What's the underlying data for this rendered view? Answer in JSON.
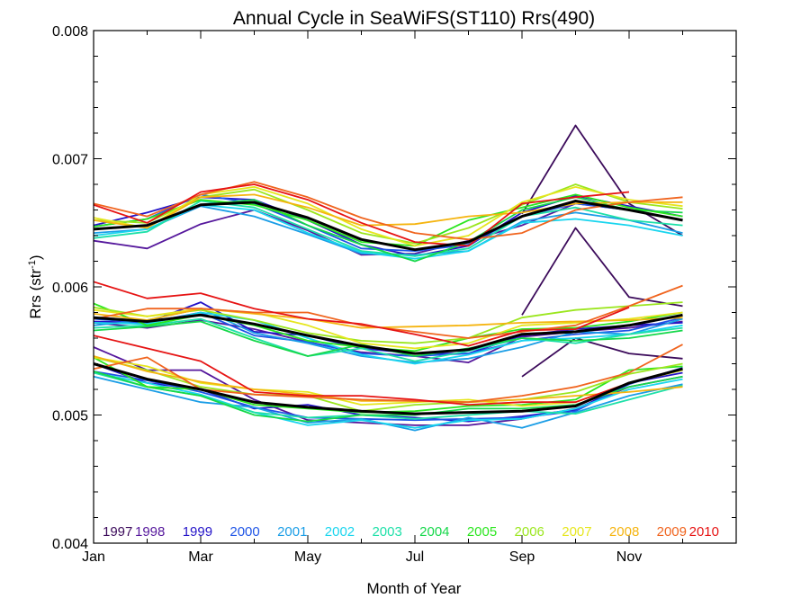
{
  "chart_data": {
    "type": "line",
    "title": "Annual Cycle in SeaWiFS(ST110) Rrs(490)",
    "xlabel": "Month of Year",
    "ylabel_main": "Rrs (str",
    "ylabel_sup": "-1",
    "ylabel_end": ")",
    "xlim": [
      1,
      13
    ],
    "ylim": [
      0.004,
      0.008
    ],
    "x_ticks": [
      {
        "value": 1,
        "label": "Jan"
      },
      {
        "value": 3,
        "label": "Mar"
      },
      {
        "value": 5,
        "label": "May"
      },
      {
        "value": 7,
        "label": "Jul"
      },
      {
        "value": 9,
        "label": "Sep"
      },
      {
        "value": 11,
        "label": "Nov"
      }
    ],
    "y_ticks": [
      {
        "value": 0.004,
        "label": "0.004"
      },
      {
        "value": 0.005,
        "label": "0.005"
      },
      {
        "value": 0.006,
        "label": "0.006"
      },
      {
        "value": 0.007,
        "label": "0.007"
      },
      {
        "value": 0.008,
        "label": "0.008"
      }
    ],
    "legend_position": "bottom",
    "x": [
      1,
      2,
      3,
      4,
      5,
      6,
      7,
      8,
      9,
      10,
      11,
      12
    ],
    "series": [
      {
        "name": "1997",
        "color": "#3b0a5a",
        "upper": [
          null,
          null,
          null,
          null,
          null,
          null,
          null,
          null,
          0.00657,
          0.00726,
          0.00665,
          0.0064
        ],
        "middle": [
          null,
          null,
          null,
          null,
          null,
          null,
          null,
          null,
          0.00578,
          0.00646,
          0.00592,
          0.00585
        ],
        "lower": [
          null,
          null,
          null,
          null,
          null,
          null,
          null,
          null,
          0.0053,
          0.0056,
          0.00548,
          0.00544
        ]
      },
      {
        "name": "1998",
        "color": "#55179c",
        "upper": [
          0.00636,
          0.0063,
          0.00649,
          0.0066,
          0.00644,
          0.00625,
          0.00626,
          0.00636,
          0.00648,
          0.00665,
          0.0066,
          0.00652
        ],
        "middle": [
          0.00572,
          0.00568,
          0.00574,
          0.00567,
          0.00557,
          0.00549,
          0.00546,
          0.00541,
          0.00561,
          0.00565,
          0.00568,
          0.00573
        ],
        "lower": [
          0.00553,
          0.00535,
          0.00535,
          0.00512,
          0.00496,
          0.00494,
          0.00492,
          0.00492,
          0.00497,
          0.00505,
          0.00522,
          0.0053
        ]
      },
      {
        "name": "1999",
        "color": "#2414c8",
        "upper": [
          0.00648,
          0.00658,
          0.0067,
          0.00668,
          0.00652,
          0.00633,
          0.00624,
          0.00632,
          0.00658,
          0.00671,
          0.00663,
          0.00655
        ],
        "middle": [
          0.00573,
          0.00572,
          0.00588,
          0.00565,
          0.00562,
          0.00552,
          0.00548,
          0.00548,
          0.00562,
          0.00567,
          0.0057,
          0.00572
        ],
        "lower": [
          0.0054,
          0.00525,
          0.0052,
          0.00505,
          0.00508,
          0.005,
          0.00498,
          0.00495,
          0.00499,
          0.00504,
          0.00525,
          0.00533
        ]
      },
      {
        "name": "2000",
        "color": "#1f55e6",
        "upper": [
          0.00647,
          0.00653,
          0.00672,
          0.00665,
          0.00648,
          0.0063,
          0.00628,
          0.00633,
          0.00655,
          0.00665,
          0.0066,
          0.00652
        ],
        "middle": [
          0.00575,
          0.00572,
          0.0058,
          0.00562,
          0.00557,
          0.00548,
          0.00546,
          0.00548,
          0.00558,
          0.00563,
          0.00566,
          0.00576
        ],
        "lower": [
          0.00534,
          0.00527,
          0.00518,
          0.00506,
          0.00498,
          0.00497,
          0.00496,
          0.00497,
          0.00498,
          0.00503,
          0.00524,
          0.00537
        ]
      },
      {
        "name": "2001",
        "color": "#1a9de6",
        "upper": [
          0.00642,
          0.00645,
          0.00663,
          0.00655,
          0.00641,
          0.00626,
          0.00625,
          0.00628,
          0.00651,
          0.00658,
          0.00652,
          0.00642
        ],
        "middle": [
          0.0057,
          0.00574,
          0.00583,
          0.00564,
          0.00556,
          0.00546,
          0.00541,
          0.00544,
          0.00553,
          0.00565,
          0.00563,
          0.00575
        ],
        "lower": [
          0.0053,
          0.0052,
          0.0051,
          0.00506,
          0.00494,
          0.00497,
          0.00488,
          0.00498,
          0.0049,
          0.00502,
          0.00515,
          0.00524
        ]
      },
      {
        "name": "2002",
        "color": "#19d5ee",
        "upper": [
          0.0064,
          0.00645,
          0.00664,
          0.0066,
          0.00642,
          0.00627,
          0.00622,
          0.00628,
          0.0065,
          0.00653,
          0.00648,
          0.0064
        ],
        "middle": [
          0.00572,
          0.00571,
          0.0058,
          0.00574,
          0.0056,
          0.00547,
          0.0054,
          0.00547,
          0.00558,
          0.0056,
          0.00563,
          0.0057
        ],
        "lower": [
          0.00533,
          0.00525,
          0.00516,
          0.00502,
          0.00492,
          0.00496,
          0.0049,
          0.00496,
          0.00497,
          0.00505,
          0.0052,
          0.00528
        ]
      },
      {
        "name": "2003",
        "color": "#1ee0a8",
        "upper": [
          0.00638,
          0.00643,
          0.00667,
          0.00662,
          0.00645,
          0.00628,
          0.00624,
          0.0063,
          0.00655,
          0.00662,
          0.00652,
          0.00648
        ],
        "middle": [
          0.00568,
          0.0057,
          0.00575,
          0.0056,
          0.00546,
          0.00552,
          0.00542,
          0.0055,
          0.0056,
          0.00556,
          0.00563,
          0.00568
        ],
        "lower": [
          0.00533,
          0.00522,
          0.00515,
          0.00502,
          0.00498,
          0.005,
          0.00497,
          0.005,
          0.00503,
          0.00501,
          0.00512,
          0.00523
        ]
      },
      {
        "name": "2004",
        "color": "#16d84a",
        "upper": [
          0.00645,
          0.00648,
          0.00664,
          0.00668,
          0.00648,
          0.00633,
          0.0062,
          0.00635,
          0.0066,
          0.0067,
          0.0066,
          0.00658
        ],
        "middle": [
          0.00566,
          0.00569,
          0.00573,
          0.00558,
          0.00546,
          0.00555,
          0.00546,
          0.00552,
          0.0056,
          0.00558,
          0.0056,
          0.00566
        ],
        "lower": [
          0.00534,
          0.00522,
          0.00515,
          0.005,
          0.00495,
          0.005,
          0.005,
          0.00505,
          0.00505,
          0.00508,
          0.00522,
          0.0053
        ]
      },
      {
        "name": "2005",
        "color": "#2ae61e",
        "upper": [
          0.00647,
          0.00653,
          0.00668,
          0.00664,
          0.00652,
          0.00635,
          0.00632,
          0.00652,
          0.00662,
          0.00672,
          0.00662,
          0.00655
        ],
        "middle": [
          0.00587,
          0.0057,
          0.00578,
          0.0057,
          0.00558,
          0.00553,
          0.0055,
          0.0056,
          0.00567,
          0.00568,
          0.00573,
          0.0058
        ],
        "lower": [
          0.00545,
          0.00522,
          0.0052,
          0.00508,
          0.00505,
          0.00502,
          0.00503,
          0.00507,
          0.00508,
          0.00512,
          0.00535,
          0.00538
        ]
      },
      {
        "name": "2006",
        "color": "#9be61e",
        "upper": [
          0.00652,
          0.0065,
          0.0067,
          0.00676,
          0.0066,
          0.00642,
          0.00634,
          0.00646,
          0.00664,
          0.0068,
          0.00666,
          0.00661
        ],
        "middle": [
          0.00584,
          0.00577,
          0.00582,
          0.00574,
          0.00564,
          0.00558,
          0.00556,
          0.0056,
          0.00576,
          0.00582,
          0.00585,
          0.00588
        ],
        "lower": [
          0.00545,
          0.00535,
          0.00522,
          0.00516,
          0.00515,
          0.00503,
          0.00508,
          0.0051,
          0.00512,
          0.00518,
          0.00532,
          0.0054
        ]
      },
      {
        "name": "2007",
        "color": "#e6e61e",
        "upper": [
          0.00654,
          0.00646,
          0.00672,
          0.00678,
          0.00665,
          0.00645,
          0.00632,
          0.0064,
          0.00666,
          0.00678,
          0.00668,
          0.00663
        ],
        "middle": [
          0.00582,
          0.00577,
          0.00583,
          0.0058,
          0.0057,
          0.00556,
          0.00552,
          0.00556,
          0.0057,
          0.00572,
          0.00575,
          0.0058
        ],
        "lower": [
          0.00545,
          0.00538,
          0.00525,
          0.0052,
          0.00518,
          0.00508,
          0.0051,
          0.00512,
          0.00507,
          0.0051,
          0.00525,
          0.00535
        ]
      },
      {
        "name": "2008",
        "color": "#f5b40f",
        "upper": [
          0.00652,
          0.00646,
          0.0067,
          0.00672,
          0.00662,
          0.00648,
          0.00649,
          0.00655,
          0.00658,
          0.00665,
          0.00666,
          0.00666
        ],
        "middle": [
          0.00579,
          0.00574,
          0.00583,
          0.00579,
          0.00575,
          0.00568,
          0.00569,
          0.0057,
          0.00572,
          0.00573,
          0.00574,
          0.00576
        ],
        "lower": [
          0.00546,
          0.00534,
          0.00526,
          0.0052,
          0.00516,
          0.00511,
          0.00511,
          0.0051,
          0.00512,
          0.00515,
          0.00518,
          0.00522
        ]
      },
      {
        "name": "2009",
        "color": "#f0641e",
        "upper": [
          0.00665,
          0.00655,
          0.00672,
          0.00682,
          0.0067,
          0.00654,
          0.00642,
          0.00637,
          0.00642,
          0.0066,
          0.00666,
          0.0067
        ],
        "middle": [
          0.00575,
          0.00583,
          0.00583,
          0.0058,
          0.0058,
          0.0057,
          0.00565,
          0.0056,
          0.00565,
          0.0057,
          0.00585,
          0.00601
        ],
        "lower": [
          0.00536,
          0.00545,
          0.0052,
          0.00516,
          0.00514,
          0.00512,
          0.00511,
          0.0051,
          0.00515,
          0.00522,
          0.00533,
          0.00555
        ]
      },
      {
        "name": "2010",
        "color": "#e61414",
        "upper": [
          0.00664,
          0.0065,
          0.00674,
          0.0068,
          0.00668,
          0.0065,
          0.00635,
          0.00632,
          0.00665,
          0.0067,
          0.00674,
          null
        ],
        "middle": [
          0.00604,
          0.00591,
          0.00595,
          0.00583,
          0.00575,
          0.00571,
          0.00563,
          0.00554,
          0.00566,
          0.00567,
          0.00584,
          null
        ],
        "lower": [
          0.00562,
          0.00552,
          0.00542,
          0.00518,
          0.00515,
          0.00515,
          0.00512,
          0.00508,
          0.0051,
          0.0051,
          0.00525,
          null
        ]
      },
      {
        "name": "",
        "color": "#000000",
        "climatology": true,
        "upper": [
          0.00645,
          0.00648,
          0.00664,
          0.00666,
          0.00654,
          0.00637,
          0.00629,
          0.00635,
          0.00655,
          0.00667,
          0.0066,
          0.00652
        ],
        "middle": [
          0.00576,
          0.00573,
          0.00578,
          0.00571,
          0.00562,
          0.00554,
          0.00548,
          0.00551,
          0.00563,
          0.00565,
          0.0057,
          0.00578
        ],
        "lower": [
          0.0054,
          0.00528,
          0.0052,
          0.0051,
          0.00506,
          0.00503,
          0.00501,
          0.00502,
          0.00503,
          0.00507,
          0.00525,
          0.00536
        ]
      }
    ]
  }
}
